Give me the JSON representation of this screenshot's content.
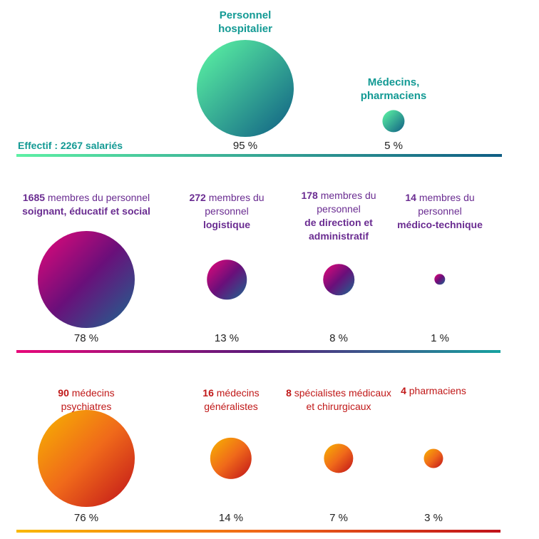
{
  "colors": {
    "teal_text": "#139a94",
    "purple_text": "#6a2c91",
    "red_text": "#c01818"
  },
  "chart_data": {
    "type": "bubble",
    "panels": [
      {
        "caption": "Effectif : 2267 salariés",
        "text_color": "#139a94",
        "gradient": [
          "#5ef9a4",
          "#0f5d84"
        ],
        "bar_gradient": [
          "#5ef0a5",
          "#0f5d84"
        ],
        "items": [
          {
            "number": "",
            "prefix": "",
            "label": "Personnel hospitalier",
            "percent_label": "95 %",
            "value": 95
          },
          {
            "number": "",
            "prefix": "",
            "label": "Médecins, pharmaciens",
            "percent_label": "5 %",
            "value": 5
          }
        ]
      },
      {
        "caption": "",
        "text_color": "#6a2c91",
        "gradient": [
          "#e8087a",
          "#6a0f7a",
          "#1a6890"
        ],
        "bar_gradient": [
          "#e8087a",
          "#5a1a7a",
          "#16a2a0"
        ],
        "items": [
          {
            "number": "1685",
            "prefix": "membres du personnel",
            "label": "soignant, éducatif et social",
            "percent_label": "78 %",
            "value": 78
          },
          {
            "number": "272",
            "prefix": "membres du personnel",
            "label": "logistique",
            "percent_label": "13 %",
            "value": 13
          },
          {
            "number": "178",
            "prefix": "membres du personnel",
            "label": "de direction et administratif",
            "percent_label": "8 %",
            "value": 8
          },
          {
            "number": "14",
            "prefix": "membres du personnel",
            "label": "médico-technique",
            "percent_label": "1 %",
            "value": 1
          }
        ]
      },
      {
        "caption": "",
        "text_color": "#c01818",
        "gradient": [
          "#f7b500",
          "#f06a1a",
          "#c0121a"
        ],
        "bar_gradient": [
          "#f9b800",
          "#f06818",
          "#c0121a"
        ],
        "items": [
          {
            "number": "90",
            "prefix": "",
            "label": "médecins psychiatres",
            "percent_label": "76 %",
            "value": 76
          },
          {
            "number": "16",
            "prefix": "",
            "label": "médecins généralistes",
            "percent_label": "14 %",
            "value": 14
          },
          {
            "number": "8",
            "prefix": "",
            "label": "spécialistes médicaux et chirurgicaux",
            "percent_label": "7 %",
            "value": 7
          },
          {
            "number": "4",
            "prefix": "",
            "label": "pharmaciens",
            "percent_label": "3 %",
            "value": 3
          }
        ]
      }
    ]
  }
}
